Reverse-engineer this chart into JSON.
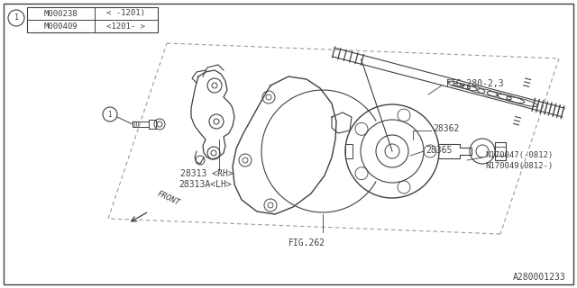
{
  "bg_color": "#ffffff",
  "border_color": "#404040",
  "line_color": "#404040",
  "text_color": "#404040",
  "part_number_bottom_right": "A280001233",
  "table": {
    "rows": [
      {
        "part": "M000238",
        "spec": "< -1201)"
      },
      {
        "part": "M000409",
        "spec": "<1201- >"
      }
    ]
  },
  "figsize": [
    6.4,
    3.2
  ],
  "dpi": 100
}
